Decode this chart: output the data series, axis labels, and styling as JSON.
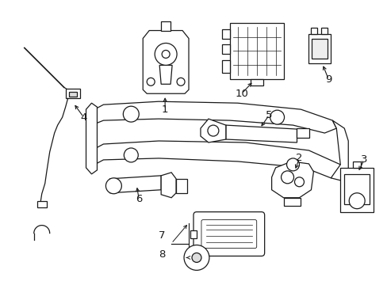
{
  "background_color": "#ffffff",
  "line_color": "#1a1a1a",
  "figsize": [
    4.89,
    3.6
  ],
  "dpi": 100,
  "label_fontsize": 9.5,
  "lw": 0.9
}
